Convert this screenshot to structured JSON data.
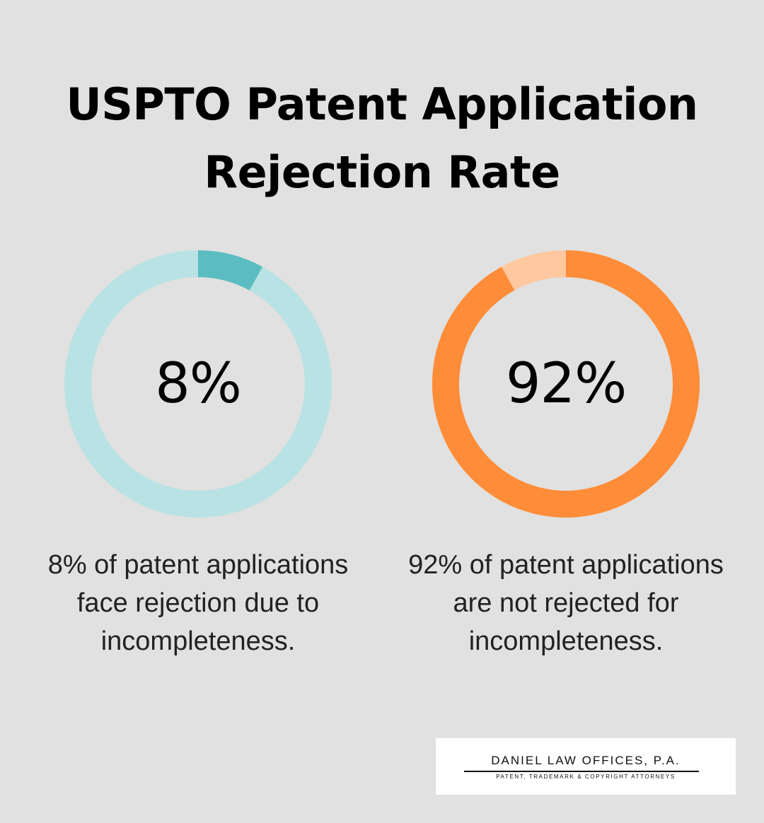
{
  "title": {
    "line1": "USPTO Patent Application",
    "line2": "Rejection Rate"
  },
  "chart_data": [
    {
      "type": "pie",
      "variant": "donut",
      "center_label": "8%",
      "value": 8,
      "total": 100,
      "highlight_color": "#5bbdc1",
      "track_color": "#b9e2e4",
      "caption_lines": [
        "8% of patent applications",
        "face rejection due to",
        "incompleteness."
      ]
    },
    {
      "type": "pie",
      "variant": "donut",
      "center_label": "92%",
      "value": 92,
      "total": 100,
      "highlight_color": "#ff8c38",
      "track_color": "#ffc89f",
      "caption_lines": [
        "92% of patent applications",
        "are not rejected for",
        "incompleteness."
      ]
    }
  ],
  "logo": {
    "name": "DANIEL LAW OFFICES, P.A.",
    "tagline": "PATENT, TRADEMARK & COPYRIGHT ATTORNEYS"
  }
}
